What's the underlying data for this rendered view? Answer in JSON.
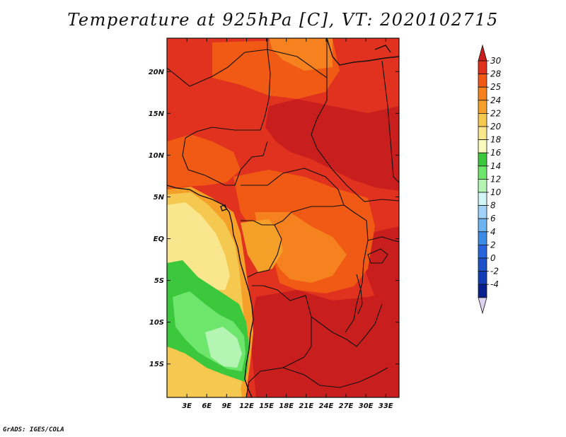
{
  "title": "Temperature at 925hPa [C], VT: 2020102715",
  "credit": "GrADS: IGES/COLA",
  "map": {
    "lon_range": [
      0,
      35
    ],
    "lat_range": [
      -19,
      24
    ],
    "lon_ticks": [
      {
        "label": "3E",
        "value": 3
      },
      {
        "label": "6E",
        "value": 6
      },
      {
        "label": "9E",
        "value": 9
      },
      {
        "label": "12E",
        "value": 12
      },
      {
        "label": "15E",
        "value": 15
      },
      {
        "label": "18E",
        "value": 18
      },
      {
        "label": "21E",
        "value": 21
      },
      {
        "label": "24E",
        "value": 24
      },
      {
        "label": "27E",
        "value": 27
      },
      {
        "label": "30E",
        "value": 30
      },
      {
        "label": "33E",
        "value": 33
      }
    ],
    "lat_ticks": [
      {
        "label": "20N",
        "value": 20
      },
      {
        "label": "15N",
        "value": 15
      },
      {
        "label": "10N",
        "value": 10
      },
      {
        "label": "5N",
        "value": 5
      },
      {
        "label": "EQ",
        "value": 0
      },
      {
        "label": "5S",
        "value": -5
      },
      {
        "label": "10S",
        "value": -10
      },
      {
        "label": "15S",
        "value": -15
      }
    ]
  },
  "colorbar": {
    "labels": [
      "30",
      "28",
      "25",
      "24",
      "22",
      "20",
      "18",
      "16",
      "14",
      "12",
      "10",
      "8",
      "6",
      "4",
      "2",
      "0",
      "-2",
      "-4"
    ],
    "colors": [
      "#e0321e",
      "#f05a14",
      "#f5821e",
      "#f5a028",
      "#f5c850",
      "#fae68c",
      "#fafabe",
      "#3cc83c",
      "#6ee66e",
      "#b4f5b4",
      "#d2f5f5",
      "#a0d2fa",
      "#6eb4f0",
      "#3c8ce6",
      "#2864dc",
      "#1e50c8",
      "#143cb4",
      "#0a1e8c"
    ],
    "top_color": "#c81e1e",
    "bottom_color": "#dcd2f0"
  },
  "palette": {
    "c30": "#c81e1e",
    "c28": "#e0321e",
    "c25": "#f05a14",
    "c24": "#f5821e",
    "c22": "#f5a028",
    "c20": "#f5c850",
    "c18": "#fae68c",
    "c16": "#fafabe",
    "g14": "#3cc83c",
    "g12": "#6ee66e",
    "g10": "#b4f5b4"
  }
}
